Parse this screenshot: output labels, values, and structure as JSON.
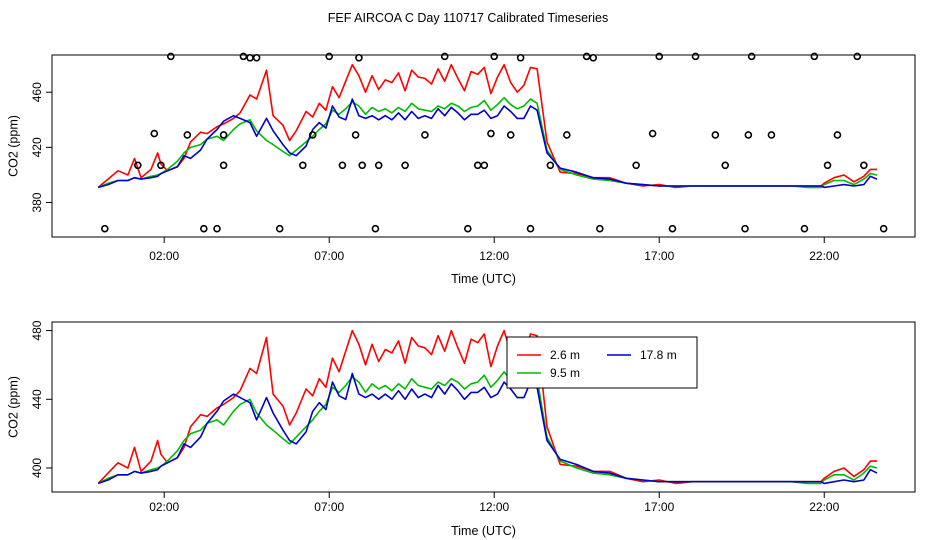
{
  "page_title": "FEF AIRCOA C  Day 110717  Calibrated Timeseries",
  "chart_data": [
    {
      "type": "line",
      "panel": "top",
      "title": "FEF AIRCOA C  Day 110717  Calibrated Timeseries",
      "xlabel": "Time (UTC)",
      "ylabel": "CO2 (ppm)",
      "xlim": [
        -1.4,
        24.75
      ],
      "ylim": [
        355,
        487
      ],
      "xticks": [
        2,
        7,
        12,
        17,
        22
      ],
      "xtick_labels": [
        "02:00",
        "07:00",
        "12:00",
        "17:00",
        "22:00"
      ],
      "yticks": [
        380,
        420,
        460
      ],
      "ytick_labels": [
        "380",
        "420",
        "460"
      ],
      "series": [
        {
          "name": "2.6 m",
          "color": "#ff0000",
          "x": [
            0,
            0.3,
            0.6,
            0.9,
            1.1,
            1.3,
            1.6,
            1.8,
            1.9,
            2.1,
            2.4,
            2.6,
            2.8,
            3.1,
            3.3,
            3.6,
            3.8,
            4.1,
            4.3,
            4.6,
            4.8,
            5.1,
            5.3,
            5.6,
            5.8,
            6.0,
            6.3,
            6.5,
            6.7,
            6.9,
            7.1,
            7.3,
            7.5,
            7.7,
            7.9,
            8.1,
            8.3,
            8.5,
            8.7,
            8.9,
            9.1,
            9.3,
            9.5,
            9.7,
            9.9,
            10.1,
            10.3,
            10.5,
            10.7,
            10.9,
            11.1,
            11.3,
            11.5,
            11.7,
            11.9,
            12.1,
            12.3,
            12.5,
            12.7,
            12.9,
            13.1,
            13.3,
            13.6,
            14.0,
            14.5,
            15.0,
            15.5,
            16.0,
            16.5,
            17.0,
            17.5,
            18.0,
            18.5,
            19.0,
            19.5,
            20.0,
            20.5,
            21.0,
            21.5,
            21.9,
            22.0,
            22.3,
            22.6,
            22.9,
            23.2,
            23.4,
            23.6
          ],
          "values": [
            391,
            397,
            403,
            400,
            412,
            398,
            404,
            416,
            408,
            403,
            406,
            412,
            424,
            431,
            430,
            435,
            437,
            441,
            445,
            458,
            455,
            476,
            443,
            436,
            425,
            432,
            446,
            442,
            452,
            447,
            464,
            456,
            468,
            480,
            472,
            460,
            472,
            462,
            469,
            467,
            474,
            461,
            476,
            471,
            470,
            466,
            477,
            468,
            480,
            470,
            461,
            475,
            473,
            478,
            459,
            471,
            480,
            467,
            460,
            465,
            478,
            477,
            424,
            402,
            401,
            398,
            398,
            394,
            392,
            393,
            391,
            392,
            392,
            392,
            392,
            392,
            392,
            392,
            392,
            392,
            394,
            398,
            400,
            395,
            399,
            404,
            404
          ]
        },
        {
          "name": "9.5 m",
          "color": "#00bb00",
          "x": [
            0,
            0.3,
            0.6,
            0.9,
            1.1,
            1.3,
            1.6,
            1.8,
            1.9,
            2.1,
            2.4,
            2.6,
            2.8,
            3.1,
            3.3,
            3.6,
            3.8,
            4.1,
            4.3,
            4.6,
            4.8,
            5.1,
            5.3,
            5.6,
            5.8,
            6.0,
            6.3,
            6.5,
            6.7,
            6.9,
            7.1,
            7.3,
            7.5,
            7.7,
            7.9,
            8.1,
            8.3,
            8.5,
            8.7,
            8.9,
            9.1,
            9.3,
            9.5,
            9.7,
            9.9,
            10.1,
            10.3,
            10.5,
            10.7,
            10.9,
            11.1,
            11.3,
            11.5,
            11.7,
            11.9,
            12.1,
            12.3,
            12.5,
            12.7,
            12.9,
            13.1,
            13.3,
            13.6,
            14.0,
            14.5,
            15.0,
            15.5,
            16.0,
            16.5,
            17.0,
            17.5,
            18.0,
            18.5,
            19.0,
            19.5,
            20.0,
            20.5,
            21.0,
            21.5,
            21.9,
            22.0,
            22.3,
            22.6,
            22.9,
            23.2,
            23.4,
            23.6
          ],
          "values": [
            391,
            394,
            396,
            396,
            398,
            397,
            399,
            400,
            401,
            404,
            410,
            416,
            420,
            422,
            426,
            428,
            425,
            433,
            437,
            440,
            432,
            425,
            422,
            417,
            414,
            418,
            424,
            428,
            433,
            437,
            447,
            444,
            448,
            453,
            450,
            444,
            449,
            446,
            448,
            445,
            449,
            446,
            452,
            448,
            447,
            446,
            450,
            448,
            452,
            450,
            446,
            449,
            450,
            454,
            447,
            451,
            456,
            451,
            448,
            450,
            455,
            452,
            418,
            404,
            400,
            397,
            396,
            394,
            393,
            392,
            392,
            392,
            392,
            392,
            392,
            392,
            392,
            392,
            391,
            391,
            393,
            396,
            396,
            393,
            397,
            401,
            400
          ]
        },
        {
          "name": "17.8 m",
          "color": "#0000cc",
          "x": [
            0,
            0.3,
            0.6,
            0.9,
            1.1,
            1.3,
            1.6,
            1.8,
            1.9,
            2.1,
            2.4,
            2.6,
            2.8,
            3.1,
            3.3,
            3.6,
            3.8,
            4.1,
            4.3,
            4.6,
            4.8,
            5.1,
            5.3,
            5.6,
            5.8,
            6.0,
            6.3,
            6.5,
            6.7,
            6.9,
            7.1,
            7.3,
            7.5,
            7.7,
            7.9,
            8.1,
            8.3,
            8.5,
            8.7,
            8.9,
            9.1,
            9.3,
            9.5,
            9.7,
            9.9,
            10.1,
            10.3,
            10.5,
            10.7,
            10.9,
            11.1,
            11.3,
            11.5,
            11.7,
            11.9,
            12.1,
            12.3,
            12.5,
            12.7,
            12.9,
            13.1,
            13.3,
            13.6,
            14.0,
            14.5,
            15.0,
            15.5,
            16.0,
            16.5,
            17.0,
            17.5,
            18.0,
            18.5,
            19.0,
            19.5,
            20.0,
            20.5,
            21.0,
            21.5,
            21.9,
            22.0,
            22.3,
            22.6,
            22.9,
            23.2,
            23.4,
            23.6
          ],
          "values": [
            391,
            393,
            396,
            396,
            398,
            397,
            398,
            399,
            401,
            403,
            406,
            414,
            412,
            418,
            426,
            433,
            439,
            443,
            441,
            438,
            428,
            441,
            432,
            422,
            416,
            414,
            421,
            433,
            438,
            434,
            450,
            442,
            440,
            455,
            443,
            441,
            443,
            440,
            443,
            440,
            445,
            440,
            446,
            441,
            443,
            441,
            448,
            443,
            449,
            445,
            440,
            444,
            444,
            447,
            441,
            443,
            450,
            446,
            441,
            441,
            450,
            447,
            416,
            405,
            402,
            398,
            397,
            394,
            393,
            392,
            392,
            392,
            392,
            392,
            392,
            392,
            392,
            392,
            392,
            392,
            391,
            392,
            393,
            392,
            393,
            399,
            397
          ]
        }
      ],
      "annotation_points": {
        "marker": "open-circle",
        "x": [
          0.2,
          1.2,
          1.7,
          1.9,
          2.2,
          2.7,
          3.2,
          3.6,
          3.8,
          3.8,
          4.4,
          4.6,
          4.8,
          5.5,
          6.2,
          6.5,
          7.0,
          7.4,
          7.8,
          7.9,
          8.0,
          8.4,
          8.5,
          9.3,
          9.9,
          10.5,
          11.2,
          11.5,
          11.7,
          11.9,
          12.0,
          12.5,
          12.8,
          13.1,
          13.7,
          14.2,
          14.8,
          15.0,
          15.2,
          16.3,
          16.8,
          17.0,
          17.4,
          18.1,
          18.7,
          19.0,
          19.6,
          19.7,
          19.8,
          20.4,
          21.4,
          21.7,
          22.1,
          22.4,
          23.0,
          23.2,
          23.8
        ],
        "values": [
          361,
          407,
          430,
          407,
          486,
          429,
          361,
          361,
          407,
          429,
          486,
          485,
          485,
          361,
          407,
          429,
          486,
          407,
          429,
          485,
          407,
          361,
          407,
          407,
          429,
          486,
          361,
          407,
          407,
          430,
          486,
          429,
          485,
          361,
          407,
          429,
          486,
          485,
          361,
          407,
          430,
          486,
          361,
          486,
          429,
          407,
          361,
          429,
          486,
          429,
          361,
          486,
          407,
          429,
          486,
          407,
          361
        ]
      }
    },
    {
      "type": "line",
      "panel": "bottom",
      "title": "",
      "xlabel": "Time (UTC)",
      "ylabel": "CO2 (ppm)",
      "xlim": [
        -1.4,
        24.75
      ],
      "ylim": [
        386,
        485
      ],
      "xticks": [
        2,
        7,
        12,
        17,
        22
      ],
      "xtick_labels": [
        "02:00",
        "07:00",
        "12:00",
        "17:00",
        "22:00"
      ],
      "yticks": [
        400,
        440,
        480
      ],
      "ytick_labels": [
        "400",
        "440",
        "480"
      ],
      "legend": {
        "position": "top-right",
        "entries": [
          {
            "label": "2.6 m",
            "color": "#ff0000"
          },
          {
            "label": "17.8 m",
            "color": "#0000cc"
          },
          {
            "label": "9.5 m",
            "color": "#00bb00"
          }
        ]
      }
    }
  ]
}
